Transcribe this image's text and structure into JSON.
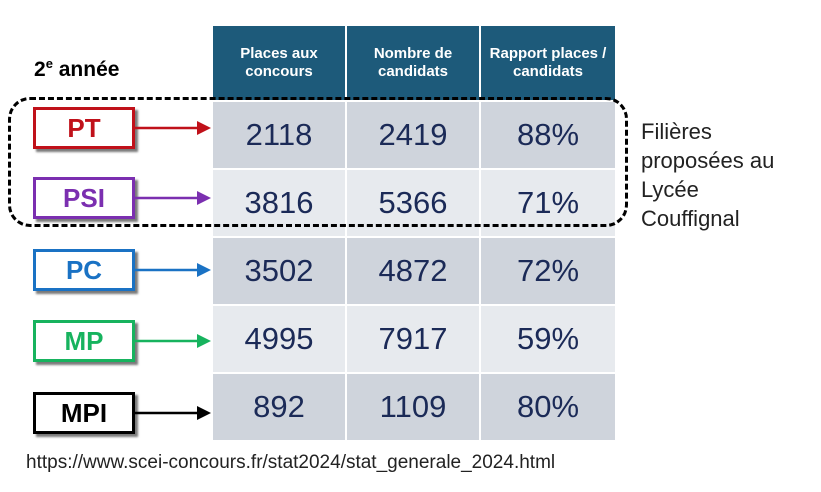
{
  "year_label": {
    "main": "2",
    "sup": "e",
    "rest": " année"
  },
  "table": {
    "headers": [
      "Places aux concours",
      "Nombre de candidats",
      "Rapport places / candidats"
    ],
    "rows": [
      {
        "filiere": "PT",
        "color": "#c0111a",
        "places": "2118",
        "candidats": "2419",
        "rapport": "88%"
      },
      {
        "filiere": "PSI",
        "color": "#7b2fb0",
        "places": "3816",
        "candidats": "5366",
        "rapport": "71%"
      },
      {
        "filiere": "PC",
        "color": "#1a72c4",
        "places": "3502",
        "candidats": "4872",
        "rapport": "72%"
      },
      {
        "filiere": "MP",
        "color": "#17b35e",
        "places": "4995",
        "candidats": "7917",
        "rapport": "59%"
      },
      {
        "filiere": "MPI",
        "color": "#000000",
        "places": "892",
        "candidats": "1109",
        "rapport": "80%"
      }
    ]
  },
  "side_note": {
    "lines": [
      "Filières",
      "proposées au",
      "Lycée",
      "Couffignal"
    ]
  },
  "source": "https://www.scei-concours.fr/stat2024/stat_generale_2024.html"
}
